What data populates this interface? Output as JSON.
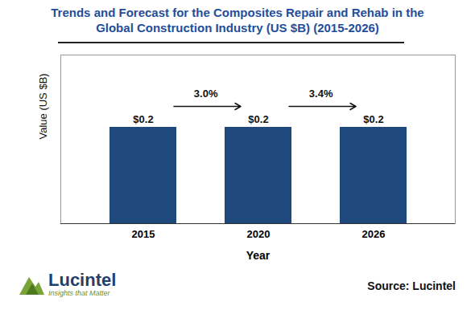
{
  "chart_data": {
    "type": "bar",
    "title": "Trends and Forecast for the Composites Repair and Rehab in the Global Construction Industry  (US $B) (2015-2026)",
    "x_label": "Year",
    "y_label": "Value (US $B)",
    "categories": [
      "2015",
      "2020",
      "2026"
    ],
    "values": [
      0.2,
      0.2,
      0.2
    ],
    "value_labels": [
      "$0.2",
      "$0.2",
      "$0.2"
    ],
    "data_labels": true,
    "color": "#1f497d",
    "ylim": [
      0,
      0.35
    ],
    "yticks": [],
    "tick_labels": "x",
    "annotations": [
      "3.0%",
      "3.4%"
    ],
    "source": "Source: Lucintel",
    "logo": {
      "name": "Lucintel",
      "tagline": "Insights that Matter"
    }
  }
}
